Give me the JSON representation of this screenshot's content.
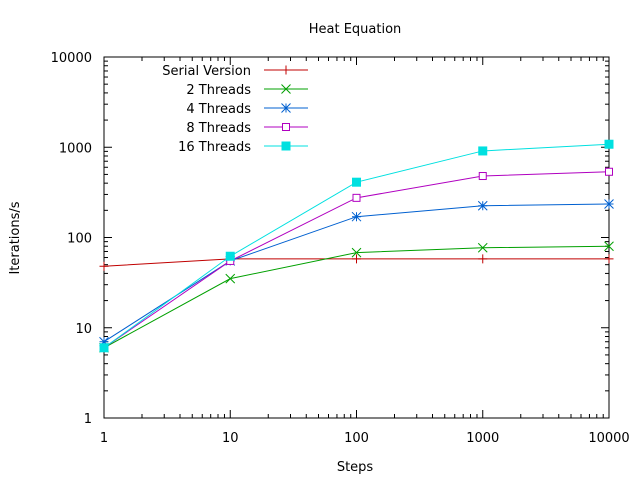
{
  "chart_data": {
    "type": "line",
    "title": "Heat Equation",
    "xlabel": "Steps",
    "ylabel": "Iterations/s",
    "x_scale": "log",
    "y_scale": "log",
    "xlim": [
      1,
      10000
    ],
    "ylim": [
      1,
      10000
    ],
    "x_ticks": [
      1,
      10,
      100,
      1000,
      10000
    ],
    "x_tick_labels": [
      "1",
      "10",
      "100",
      "1000",
      "10000"
    ],
    "y_ticks": [
      1,
      10,
      100,
      1000,
      10000
    ],
    "y_tick_labels": [
      "1",
      "10",
      "100",
      "1000",
      "10000"
    ],
    "grid": false,
    "legend_position": "top-left",
    "x": [
      1,
      10,
      100,
      1000,
      10000
    ],
    "series": [
      {
        "name": "Serial Version",
        "color": "#c00000",
        "marker": "plus",
        "values": [
          48,
          58,
          58,
          58,
          58
        ]
      },
      {
        "name": "2 Threads",
        "color": "#00a000",
        "marker": "cross",
        "values": [
          6,
          35,
          68,
          77,
          80
        ]
      },
      {
        "name": "4 Threads",
        "color": "#0060d0",
        "marker": "star",
        "values": [
          7,
          55,
          170,
          225,
          235
        ]
      },
      {
        "name": "8 Threads",
        "color": "#b000c0",
        "marker": "square-open",
        "values": [
          6,
          55,
          275,
          480,
          535
        ]
      },
      {
        "name": "16 Threads",
        "color": "#00e0e0",
        "marker": "square-filled",
        "values": [
          6,
          62,
          410,
          910,
          1080
        ]
      }
    ]
  }
}
